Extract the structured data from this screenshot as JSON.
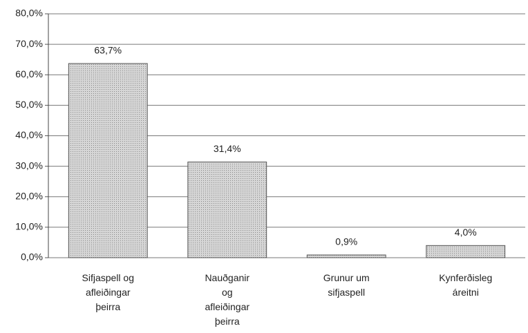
{
  "chart_data": {
    "type": "bar",
    "categories": [
      "Sifjaspell og\nafleiðingar\nþeirra",
      "Nauðganir\nog\nafleiðingar\nþeirra",
      "Grunur um\nsifjaspell",
      "Kynferðisleg\náreitni"
    ],
    "values": [
      63.7,
      31.4,
      0.9,
      4.0
    ],
    "value_labels": [
      "63,7%",
      "31,4%",
      "0,9%",
      "4,0%"
    ],
    "color": "#bdbdbd",
    "ylim": [
      0,
      80
    ],
    "yticks": [
      {
        "value": 0,
        "label": "0,0%"
      },
      {
        "value": 10,
        "label": "10,0%"
      },
      {
        "value": 20,
        "label": "20,0%"
      },
      {
        "value": 30,
        "label": "30,0%"
      },
      {
        "value": 40,
        "label": "40,0%"
      },
      {
        "value": 50,
        "label": "50,0%"
      },
      {
        "value": 60,
        "label": "60,0%"
      },
      {
        "value": 70,
        "label": "70,0%"
      },
      {
        "value": 80,
        "label": "80,0%"
      }
    ],
    "grid": true
  }
}
